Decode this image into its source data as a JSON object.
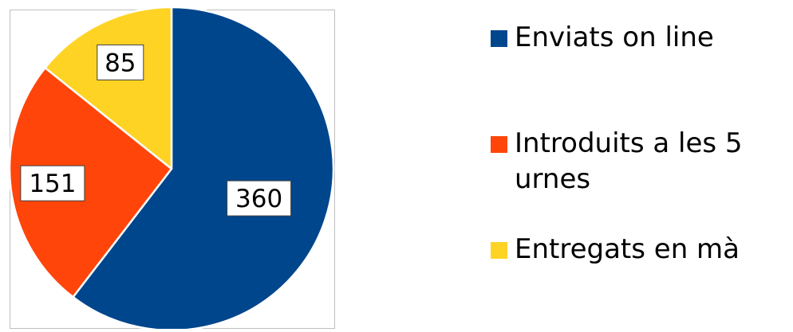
{
  "chart_data": {
    "type": "pie",
    "categories": [
      "Enviats on line",
      "Introduits a les 5 urnes",
      "Entregats en mà"
    ],
    "values": [
      360,
      151,
      85
    ],
    "colors": [
      "#00468C",
      "#FF450A",
      "#FFD324"
    ],
    "data_labels": [
      "360",
      "151",
      "85"
    ],
    "legend_position": "right",
    "start_angle_deg": 0,
    "direction": "clockwise"
  },
  "legend": {
    "items": [
      {
        "label": "Enviats on line",
        "color": "#00468C"
      },
      {
        "label": "Introduits a les 5 urnes",
        "color": "#FF450A"
      },
      {
        "label": "Entregats en mà",
        "color": "#FFD324"
      }
    ]
  }
}
